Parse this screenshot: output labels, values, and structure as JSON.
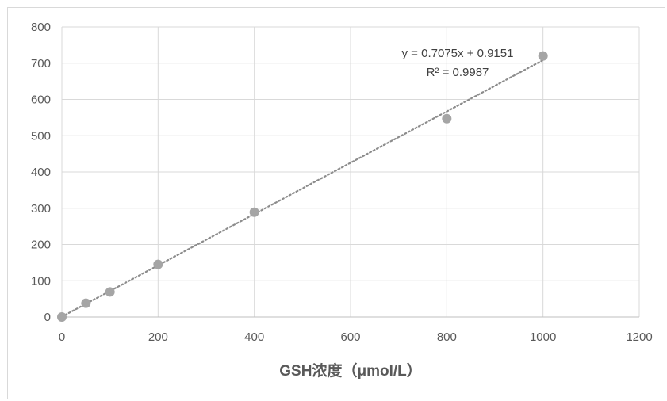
{
  "chart_data": {
    "type": "scatter",
    "x": [
      0,
      50,
      100,
      200,
      400,
      800,
      1000
    ],
    "y": [
      0,
      38,
      69,
      145,
      289,
      547,
      720
    ],
    "xlabel": "GSH浓度（μmol/L）",
    "ylabel": "",
    "title": "",
    "xlim": [
      0,
      1200
    ],
    "ylim": [
      0,
      800
    ],
    "xticks": [
      "0",
      "200",
      "400",
      "600",
      "800",
      "1000",
      "1200"
    ],
    "yticks": [
      "0",
      "100",
      "200",
      "300",
      "400",
      "500",
      "600",
      "700",
      "800"
    ],
    "grid": true,
    "trendline": {
      "type": "linear",
      "slope": 0.7075,
      "intercept": 0.9151,
      "equation": "y = 0.7075x + 0.9151",
      "r_squared": "R² = 0.9987"
    },
    "colors": {
      "marker": "#a5a5a5",
      "trendline": "#8c8c8c",
      "grid": "#d9d9d9",
      "text": "#595959"
    }
  }
}
